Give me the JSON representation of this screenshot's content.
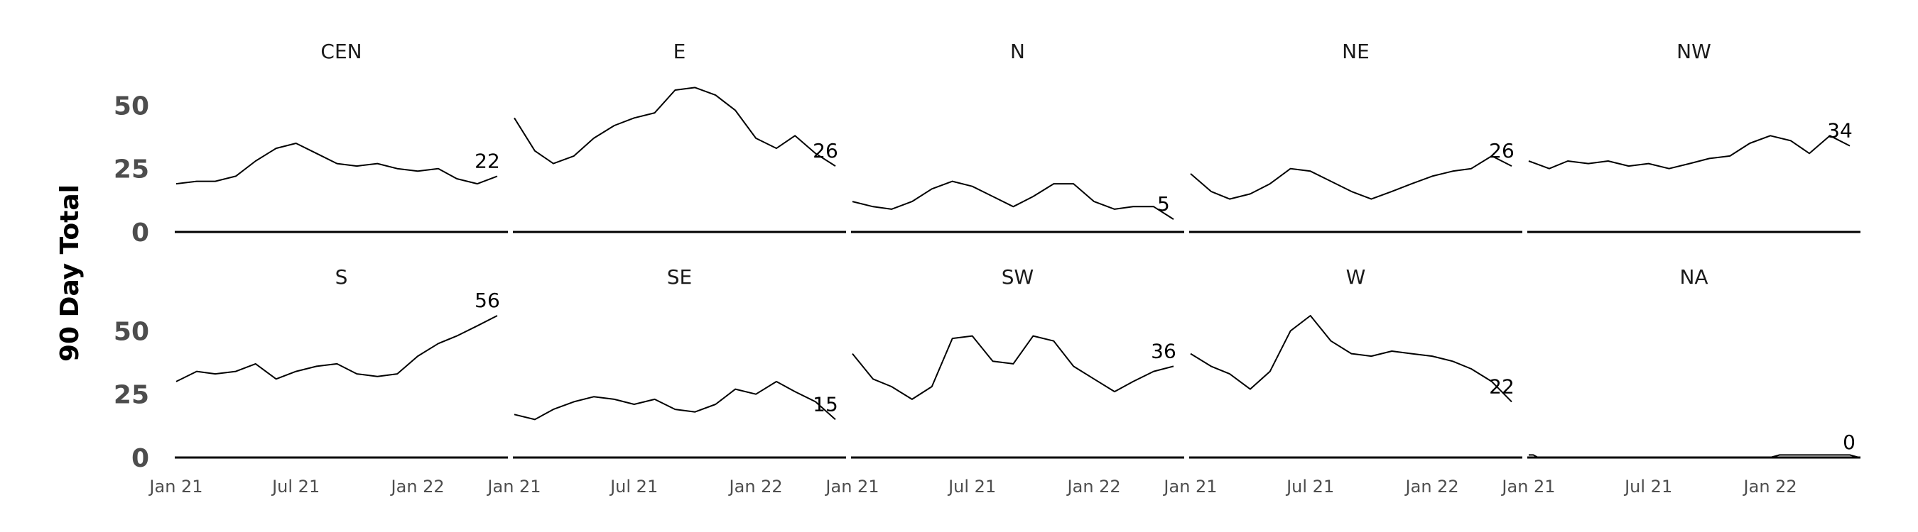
{
  "chart_data": {
    "type": "line",
    "facet": true,
    "ylabel": "90 Day Total",
    "ylim": [
      0,
      70
    ],
    "y_ticks": [
      0,
      25,
      50
    ],
    "x_range": [
      "2021-01-01",
      "2022-05-15"
    ],
    "x_ticks": [
      {
        "date": "2021-01-01",
        "label": "Jan 21"
      },
      {
        "date": "2021-07-01",
        "label": "Jul 21"
      },
      {
        "date": "2022-01-01",
        "label": "Jan 22"
      }
    ],
    "series_color": "#000000",
    "panels": [
      {
        "name": "CEN",
        "end_label": "22",
        "points": [
          [
            "2021-01-01",
            19
          ],
          [
            "2021-02-01",
            20
          ],
          [
            "2021-03-01",
            20
          ],
          [
            "2021-04-01",
            22
          ],
          [
            "2021-05-01",
            28
          ],
          [
            "2021-06-01",
            33
          ],
          [
            "2021-07-01",
            35
          ],
          [
            "2021-08-01",
            31
          ],
          [
            "2021-09-01",
            27
          ],
          [
            "2021-10-01",
            26
          ],
          [
            "2021-11-01",
            27
          ],
          [
            "2021-12-01",
            25
          ],
          [
            "2022-01-01",
            24
          ],
          [
            "2022-02-01",
            25
          ],
          [
            "2022-03-01",
            21
          ],
          [
            "2022-04-01",
            19
          ],
          [
            "2022-05-01",
            22
          ]
        ]
      },
      {
        "name": "E",
        "end_label": "26",
        "points": [
          [
            "2021-01-01",
            45
          ],
          [
            "2021-02-01",
            32
          ],
          [
            "2021-03-01",
            27
          ],
          [
            "2021-04-01",
            30
          ],
          [
            "2021-05-01",
            37
          ],
          [
            "2021-06-01",
            42
          ],
          [
            "2021-07-01",
            45
          ],
          [
            "2021-08-01",
            47
          ],
          [
            "2021-09-01",
            56
          ],
          [
            "2021-10-01",
            57
          ],
          [
            "2021-11-01",
            54
          ],
          [
            "2021-12-01",
            48
          ],
          [
            "2022-01-01",
            37
          ],
          [
            "2022-02-01",
            33
          ],
          [
            "2022-03-01",
            38
          ],
          [
            "2022-04-01",
            31
          ],
          [
            "2022-05-01",
            26
          ]
        ]
      },
      {
        "name": "N",
        "end_label": "5",
        "points": [
          [
            "2021-01-01",
            12
          ],
          [
            "2021-02-01",
            10
          ],
          [
            "2021-03-01",
            9
          ],
          [
            "2021-04-01",
            12
          ],
          [
            "2021-05-01",
            17
          ],
          [
            "2021-06-01",
            20
          ],
          [
            "2021-07-01",
            18
          ],
          [
            "2021-08-01",
            14
          ],
          [
            "2021-09-01",
            10
          ],
          [
            "2021-10-01",
            14
          ],
          [
            "2021-11-01",
            19
          ],
          [
            "2021-12-01",
            19
          ],
          [
            "2022-01-01",
            12
          ],
          [
            "2022-02-01",
            9
          ],
          [
            "2022-03-01",
            10
          ],
          [
            "2022-04-01",
            10
          ],
          [
            "2022-05-01",
            5
          ]
        ]
      },
      {
        "name": "NE",
        "end_label": "26",
        "points": [
          [
            "2021-01-01",
            23
          ],
          [
            "2021-02-01",
            16
          ],
          [
            "2021-03-01",
            13
          ],
          [
            "2021-04-01",
            15
          ],
          [
            "2021-05-01",
            19
          ],
          [
            "2021-06-01",
            25
          ],
          [
            "2021-07-01",
            24
          ],
          [
            "2021-08-01",
            20
          ],
          [
            "2021-09-01",
            16
          ],
          [
            "2021-10-01",
            13
          ],
          [
            "2021-11-01",
            16
          ],
          [
            "2021-12-01",
            19
          ],
          [
            "2022-01-01",
            22
          ],
          [
            "2022-02-01",
            24
          ],
          [
            "2022-03-01",
            25
          ],
          [
            "2022-04-01",
            30
          ],
          [
            "2022-05-01",
            26
          ]
        ]
      },
      {
        "name": "NW",
        "end_label": "34",
        "points": [
          [
            "2021-01-01",
            28
          ],
          [
            "2021-02-01",
            25
          ],
          [
            "2021-03-01",
            28
          ],
          [
            "2021-04-01",
            27
          ],
          [
            "2021-05-01",
            28
          ],
          [
            "2021-06-01",
            26
          ],
          [
            "2021-07-01",
            27
          ],
          [
            "2021-08-01",
            25
          ],
          [
            "2021-09-01",
            27
          ],
          [
            "2021-10-01",
            29
          ],
          [
            "2021-11-01",
            30
          ],
          [
            "2021-12-01",
            35
          ],
          [
            "2022-01-01",
            38
          ],
          [
            "2022-02-01",
            36
          ],
          [
            "2022-03-01",
            31
          ],
          [
            "2022-04-01",
            38
          ],
          [
            "2022-05-01",
            34
          ]
        ]
      },
      {
        "name": "S",
        "end_label": "56",
        "points": [
          [
            "2021-01-01",
            30
          ],
          [
            "2021-02-01",
            34
          ],
          [
            "2021-03-01",
            33
          ],
          [
            "2021-04-01",
            34
          ],
          [
            "2021-05-01",
            37
          ],
          [
            "2021-06-01",
            31
          ],
          [
            "2021-07-01",
            34
          ],
          [
            "2021-08-01",
            36
          ],
          [
            "2021-09-01",
            37
          ],
          [
            "2021-10-01",
            33
          ],
          [
            "2021-11-01",
            32
          ],
          [
            "2021-12-01",
            33
          ],
          [
            "2022-01-01",
            40
          ],
          [
            "2022-02-01",
            45
          ],
          [
            "2022-03-01",
            48
          ],
          [
            "2022-04-01",
            52
          ],
          [
            "2022-05-01",
            56
          ]
        ]
      },
      {
        "name": "SE",
        "end_label": "15",
        "points": [
          [
            "2021-01-01",
            17
          ],
          [
            "2021-02-01",
            15
          ],
          [
            "2021-03-01",
            19
          ],
          [
            "2021-04-01",
            22
          ],
          [
            "2021-05-01",
            24
          ],
          [
            "2021-06-01",
            23
          ],
          [
            "2021-07-01",
            21
          ],
          [
            "2021-08-01",
            23
          ],
          [
            "2021-09-01",
            19
          ],
          [
            "2021-10-01",
            18
          ],
          [
            "2021-11-01",
            21
          ],
          [
            "2021-12-01",
            27
          ],
          [
            "2022-01-01",
            25
          ],
          [
            "2022-02-01",
            30
          ],
          [
            "2022-03-01",
            26
          ],
          [
            "2022-04-01",
            22
          ],
          [
            "2022-05-01",
            15
          ]
        ]
      },
      {
        "name": "SW",
        "end_label": "36",
        "points": [
          [
            "2021-01-01",
            41
          ],
          [
            "2021-02-01",
            31
          ],
          [
            "2021-03-01",
            28
          ],
          [
            "2021-04-01",
            23
          ],
          [
            "2021-05-01",
            28
          ],
          [
            "2021-06-01",
            47
          ],
          [
            "2021-07-01",
            48
          ],
          [
            "2021-08-01",
            38
          ],
          [
            "2021-09-01",
            37
          ],
          [
            "2021-10-01",
            48
          ],
          [
            "2021-11-01",
            46
          ],
          [
            "2021-12-01",
            36
          ],
          [
            "2022-01-01",
            31
          ],
          [
            "2022-02-01",
            26
          ],
          [
            "2022-03-01",
            30
          ],
          [
            "2022-04-01",
            34
          ],
          [
            "2022-05-01",
            36
          ]
        ]
      },
      {
        "name": "W",
        "end_label": "22",
        "points": [
          [
            "2021-01-01",
            41
          ],
          [
            "2021-02-01",
            36
          ],
          [
            "2021-03-01",
            33
          ],
          [
            "2021-04-01",
            27
          ],
          [
            "2021-05-01",
            34
          ],
          [
            "2021-06-01",
            50
          ],
          [
            "2021-07-01",
            56
          ],
          [
            "2021-08-01",
            46
          ],
          [
            "2021-09-01",
            41
          ],
          [
            "2021-10-01",
            40
          ],
          [
            "2021-11-01",
            42
          ],
          [
            "2021-12-01",
            41
          ],
          [
            "2022-01-01",
            40
          ],
          [
            "2022-02-01",
            38
          ],
          [
            "2022-03-01",
            35
          ],
          [
            "2022-04-01",
            30
          ],
          [
            "2022-05-01",
            22
          ]
        ]
      },
      {
        "name": "NA",
        "end_label": "0",
        "points": [
          [
            "2021-01-01",
            1
          ],
          [
            "2021-01-08",
            1
          ],
          [
            "2021-01-15",
            0
          ],
          [
            "2022-01-01",
            0
          ],
          [
            "2022-01-15",
            1
          ],
          [
            "2022-05-01",
            1
          ],
          [
            "2022-05-15",
            0
          ]
        ]
      }
    ]
  }
}
